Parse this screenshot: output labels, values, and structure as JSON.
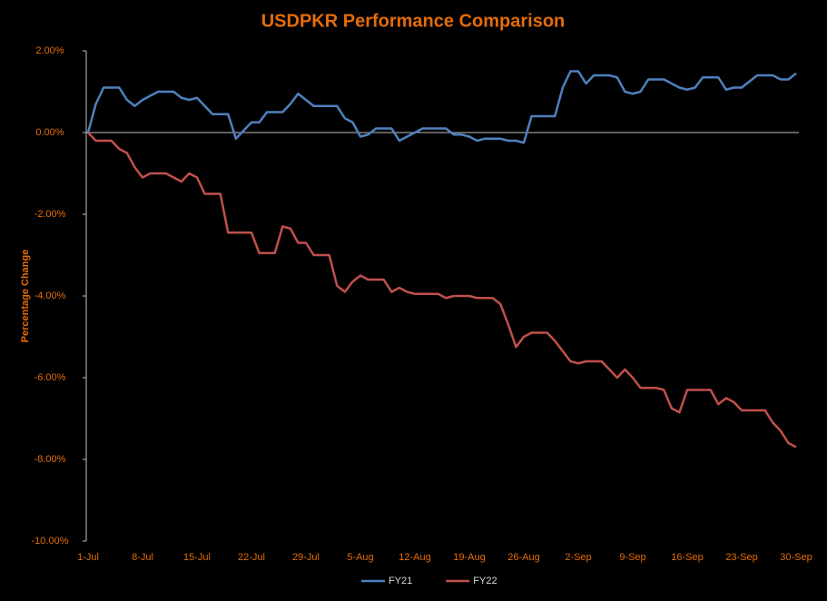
{
  "chart_data": {
    "type": "line",
    "title": "USDPKR Performance Comparison",
    "y_label": "Percentage Change",
    "categories": [
      "1-Jul",
      null,
      null,
      null,
      null,
      null,
      null,
      "8-Jul",
      null,
      null,
      null,
      null,
      null,
      null,
      "15-Jul",
      null,
      null,
      null,
      null,
      null,
      null,
      "22-Jul",
      null,
      null,
      null,
      null,
      null,
      null,
      "29-Jul",
      null,
      null,
      null,
      null,
      null,
      null,
      "5-Aug",
      null,
      null,
      null,
      null,
      null,
      null,
      "12-Aug",
      null,
      null,
      null,
      null,
      null,
      null,
      "19-Aug",
      null,
      null,
      null,
      null,
      null,
      null,
      "26-Aug",
      null,
      null,
      null,
      null,
      null,
      null,
      "2-Sep",
      null,
      null,
      null,
      null,
      null,
      null,
      "9-Sep",
      null,
      null,
      null,
      null,
      null,
      null,
      "16-Sep",
      null,
      null,
      null,
      null,
      null,
      null,
      "23-Sep",
      null,
      null,
      null,
      null,
      null,
      null,
      "30-Sep"
    ],
    "series": [
      {
        "name": "FY21",
        "color": "#4f81bd",
        "values": [
          0,
          0.7,
          1.1,
          1.1,
          1.1,
          0.8,
          0.65,
          0.8,
          0.9,
          1.0,
          1.0,
          1.0,
          0.85,
          0.8,
          0.85,
          0.65,
          0.45,
          0.45,
          0.45,
          -0.15,
          0.05,
          0.25,
          0.25,
          0.5,
          0.5,
          0.5,
          0.7,
          0.95,
          0.8,
          0.65,
          0.65,
          0.65,
          0.65,
          0.35,
          0.25,
          -0.1,
          -0.05,
          0.1,
          0.1,
          0.1,
          -0.2,
          -0.1,
          0.0,
          0.1,
          0.1,
          0.1,
          0.1,
          -0.05,
          -0.05,
          -0.1,
          -0.2,
          -0.15,
          -0.15,
          -0.15,
          -0.2,
          -0.2,
          -0.25,
          0.4,
          0.4,
          0.4,
          0.4,
          1.1,
          1.5,
          1.5,
          1.2,
          1.4,
          1.4,
          1.4,
          1.35,
          1.0,
          0.95,
          1.0,
          1.3,
          1.3,
          1.3,
          1.2,
          1.1,
          1.05,
          1.1,
          1.35,
          1.35,
          1.35,
          1.05,
          1.1,
          1.1,
          1.25,
          1.4,
          1.4,
          1.4,
          1.3,
          1.3,
          1.45
        ]
      },
      {
        "name": "FY22",
        "color": "#c0504d",
        "values": [
          0,
          -0.2,
          -0.2,
          -0.2,
          -0.4,
          -0.5,
          -0.85,
          -1.1,
          -1.0,
          -1.0,
          -1.0,
          -1.1,
          -1.2,
          -1.0,
          -1.1,
          -1.5,
          -1.5,
          -1.5,
          -2.45,
          -2.45,
          -2.45,
          -2.45,
          -2.95,
          -2.95,
          -2.95,
          -2.3,
          -2.35,
          -2.7,
          -2.7,
          -3.0,
          -3.0,
          -3.0,
          -3.75,
          -3.9,
          -3.65,
          -3.5,
          -3.6,
          -3.6,
          -3.6,
          -3.9,
          -3.8,
          -3.9,
          -3.95,
          -3.95,
          -3.95,
          -3.95,
          -4.05,
          -4.0,
          -4.0,
          -4.0,
          -4.05,
          -4.05,
          -4.05,
          -4.2,
          -4.7,
          -5.25,
          -5.0,
          -4.9,
          -4.9,
          -4.9,
          -5.1,
          -5.35,
          -5.6,
          -5.65,
          -5.6,
          -5.6,
          -5.6,
          -5.8,
          -6.0,
          -5.8,
          -6.0,
          -6.25,
          -6.25,
          -6.25,
          -6.3,
          -6.75,
          -6.85,
          -6.3,
          -6.3,
          -6.3,
          -6.3,
          -6.65,
          -6.5,
          -6.6,
          -6.8,
          -6.8,
          -6.8,
          -6.8,
          -7.1,
          -7.3,
          -7.6,
          -7.7
        ]
      }
    ],
    "ylim": [
      -10,
      2
    ],
    "yticks": [
      {
        "value": -10,
        "label": "-10.00%"
      },
      {
        "value": -8,
        "label": "-8.00%"
      },
      {
        "value": -6,
        "label": "-6.00%"
      },
      {
        "value": -4,
        "label": "-4.00%"
      },
      {
        "value": -2,
        "label": "-2.00%"
      },
      {
        "value": 0,
        "label": "0.00%"
      },
      {
        "value": 2,
        "label": "2.00%"
      }
    ],
    "legend": "bottom"
  }
}
